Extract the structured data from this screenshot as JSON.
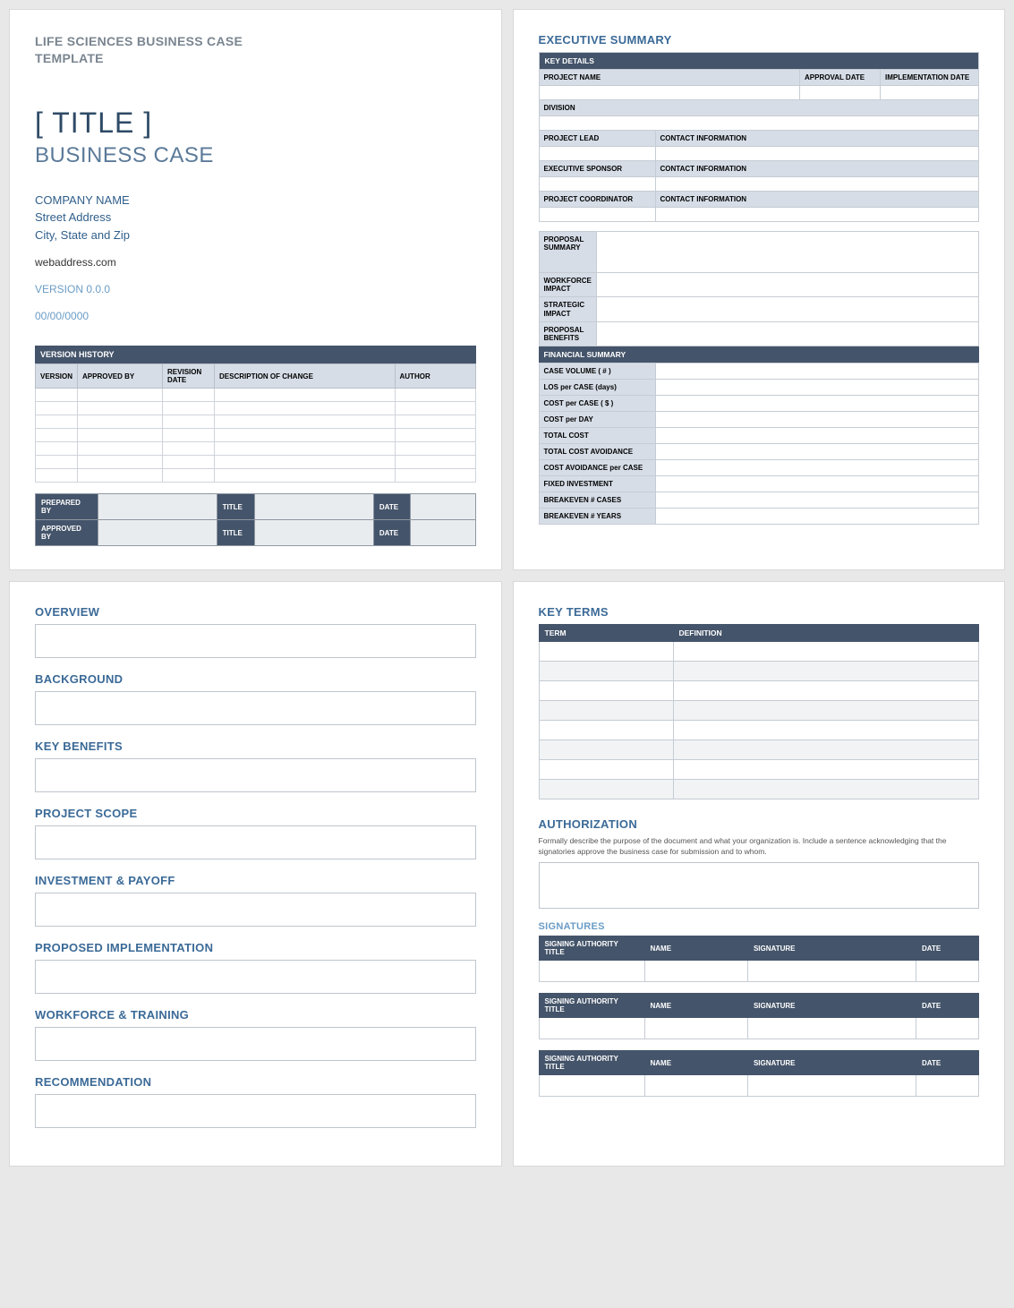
{
  "colors": {
    "header_bar": "#44546a",
    "label_bg": "#d6dde7",
    "section_title": "#3b6a97",
    "muted_title": "#7a8590",
    "accent_text": "#2f5e8a",
    "light_accent": "#6a9cc5",
    "border": "#c6ccd4",
    "page_bg": "#ffffff",
    "body_bg": "#e8e8e8"
  },
  "page1": {
    "template_header_l1": "LIFE SCIENCES BUSINESS CASE",
    "template_header_l2": "TEMPLATE",
    "title": "[ TITLE ]",
    "subtitle": "BUSINESS CASE",
    "company": "COMPANY NAME",
    "street": "Street Address",
    "city": "City, State and Zip",
    "web": "webaddress.com",
    "version": "VERSION 0.0.0",
    "date": "00/00/0000",
    "version_history": {
      "title": "VERSION HISTORY",
      "cols": [
        "VERSION",
        "APPROVED BY",
        "REVISION DATE",
        "DESCRIPTION OF CHANGE",
        "AUTHOR"
      ],
      "row_count": 7
    },
    "sign": {
      "rows": [
        {
          "a": "PREPARED BY",
          "b": "TITLE",
          "c": "DATE"
        },
        {
          "a": "APPROVED BY",
          "b": "TITLE",
          "c": "DATE"
        }
      ]
    }
  },
  "page2": {
    "title": "EXECUTIVE SUMMARY",
    "key_details_bar": "KEY DETAILS",
    "row1": {
      "project_name": "PROJECT NAME",
      "approval_date": "APPROVAL DATE",
      "impl_date": "IMPLEMENTATION DATE"
    },
    "division": "DIVISION",
    "contact_rows": [
      {
        "a": "PROJECT LEAD",
        "b": "CONTACT INFORMATION"
      },
      {
        "a": "EXECUTIVE SPONSOR",
        "b": "CONTACT INFORMATION"
      },
      {
        "a": "PROJECT COORDINATOR",
        "b": "CONTACT INFORMATION"
      }
    ],
    "proposal": {
      "rows": [
        "PROPOSAL SUMMARY",
        "WORKFORCE IMPACT",
        "STRATEGIC IMPACT",
        "PROPOSAL BENEFITS"
      ]
    },
    "financial_bar": "FINANCIAL SUMMARY",
    "financial_rows": [
      "CASE VOLUME ( # )",
      "LOS per CASE (days)",
      "COST per CASE ( $ )",
      "COST per DAY",
      "TOTAL COST",
      "TOTAL COST AVOIDANCE",
      "COST AVOIDANCE per CASE",
      "FIXED INVESTMENT",
      "BREAKEVEN # CASES",
      "BREAKEVEN # YEARS"
    ]
  },
  "page3": {
    "sections": [
      "OVERVIEW",
      "BACKGROUND",
      "KEY BENEFITS",
      "PROJECT SCOPE",
      "INVESTMENT & PAYOFF",
      "PROPOSED IMPLEMENTATION",
      "WORKFORCE & TRAINING",
      "RECOMMENDATION"
    ]
  },
  "page4": {
    "key_terms": {
      "title": "KEY TERMS",
      "cols": [
        "TERM",
        "DEFINITION"
      ],
      "row_count": 8
    },
    "authorization": {
      "title": "AUTHORIZATION",
      "desc": "Formally describe the purpose of the document and what your organization is. Include a sentence acknowledging that the signatories approve the business case for submission and to whom."
    },
    "signatures": {
      "title": "SIGNATURES",
      "cols": [
        "SIGNING AUTHORITY TITLE",
        "NAME",
        "SIGNATURE",
        "DATE"
      ],
      "block_count": 3
    }
  }
}
